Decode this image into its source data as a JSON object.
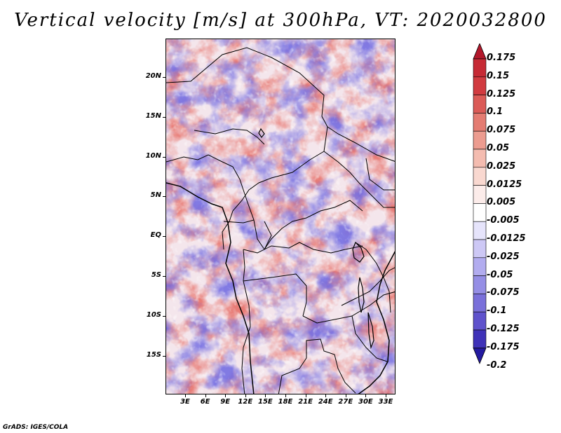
{
  "title": "Vertical velocity [m/s] at 300hPa, VT: 2020032800",
  "credit": "GrADS: IGES/COLA",
  "y_ticks": [
    "20N",
    "15N",
    "10N",
    "5N",
    "EQ",
    "5S",
    "10S",
    "15S"
  ],
  "x_ticks": [
    "3E",
    "6E",
    "9E",
    "12E",
    "15E",
    "18E",
    "21E",
    "24E",
    "27E",
    "30E",
    "33E"
  ],
  "colorbar": {
    "labels": [
      "0.175",
      "0.15",
      "0.125",
      "0.1",
      "0.075",
      "0.05",
      "0.025",
      "0.0125",
      "0.005",
      "-0.005",
      "-0.0125",
      "-0.025",
      "-0.05",
      "-0.075",
      "-0.1",
      "-0.125",
      "-0.175",
      "-0.2"
    ],
    "colors": [
      "#b2182b",
      "#c62a35",
      "#d13b40",
      "#db5b57",
      "#e47c72",
      "#ec9c90",
      "#f4bcb0",
      "#f9d8d0",
      "#fcecea",
      "#ffffff",
      "#e6e4fb",
      "#cdc8f5",
      "#b2acef",
      "#958ee5",
      "#7a70da",
      "#5f52cc",
      "#3f32b8",
      "#241aa0"
    ]
  },
  "field_colors": {
    "positive": "#e45a52",
    "negative": "#6b66e0",
    "neutral": "#f6eef2",
    "border": "#000000"
  }
}
